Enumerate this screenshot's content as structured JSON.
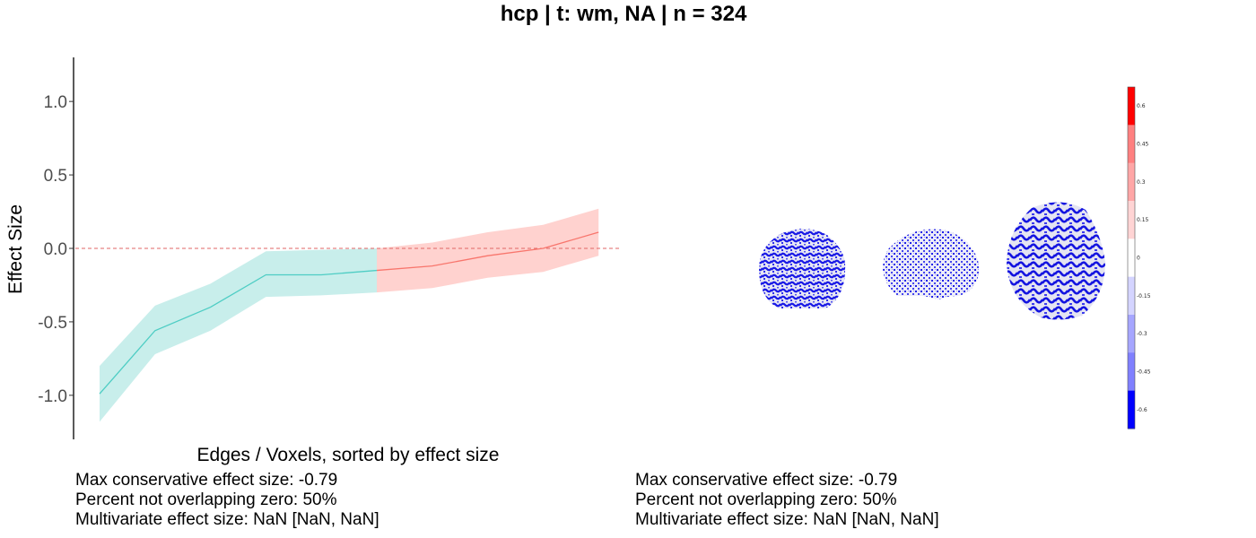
{
  "title": "hcp | t: wm, NA | n = 324",
  "chart_data": {
    "type": "line",
    "title": "hcp | t: wm, NA | n = 324",
    "xlabel": "Edges / Voxels, sorted by effect size",
    "ylabel": "Effect Size",
    "ylim": [
      -1.3,
      1.3
    ],
    "yticks": [
      1.0,
      0.5,
      0.0,
      -0.5,
      -1.0
    ],
    "ytick_labels": [
      "1.0",
      "0.5",
      "0.0",
      "-0.5",
      "-1.0"
    ],
    "reference_line": {
      "y": 0,
      "style": "dashed",
      "color": "#e06666"
    },
    "x": [
      1,
      2,
      3,
      4,
      5,
      6,
      7,
      8,
      9,
      10
    ],
    "series": [
      {
        "color": "#4ecdc4",
        "fill": "#c8eeeb",
        "x": [
          1,
          2,
          3,
          4,
          5,
          6
        ],
        "y": [
          -0.99,
          -0.56,
          -0.4,
          -0.18,
          -0.18,
          -0.15
        ],
        "lower": [
          -1.18,
          -0.72,
          -0.56,
          -0.33,
          -0.32,
          -0.3
        ],
        "upper": [
          -0.8,
          -0.39,
          -0.24,
          -0.02,
          -0.01,
          0.0
        ]
      },
      {
        "color": "#f8766d",
        "fill": "#ffd2cf",
        "x": [
          6,
          7,
          8,
          9,
          10
        ],
        "y": [
          -0.15,
          -0.12,
          -0.05,
          0.0,
          0.11
        ],
        "lower": [
          -0.3,
          -0.27,
          -0.2,
          -0.16,
          -0.05
        ],
        "upper": [
          0.0,
          0.04,
          0.11,
          0.16,
          0.27
        ]
      }
    ]
  },
  "colorbar": {
    "labels": [
      "0.6",
      "0.45",
      "0.3",
      "0.15",
      "0",
      "-0.15",
      "-0.3",
      "-0.45",
      "-0.6"
    ],
    "colors": [
      "#ff0000",
      "#ff8080",
      "#ffa6a6",
      "#ffd4d4",
      "#ffffff",
      "#d4d4ff",
      "#a6a6ff",
      "#8080ff",
      "#0000ff"
    ]
  },
  "brain_views": [
    "axial-view",
    "sagittal-view",
    "axial-view-large"
  ],
  "stats_left": {
    "line1": "Max conservative effect size: -0.79",
    "line2": "Percent not overlapping zero: 50%",
    "line3": "Multivariate effect size: NaN [NaN, NaN]"
  },
  "stats_right": {
    "line1": "Max conservative effect size: -0.79",
    "line2": "Percent not overlapping zero: 50%",
    "line3": "Multivariate effect size: NaN [NaN, NaN]"
  }
}
